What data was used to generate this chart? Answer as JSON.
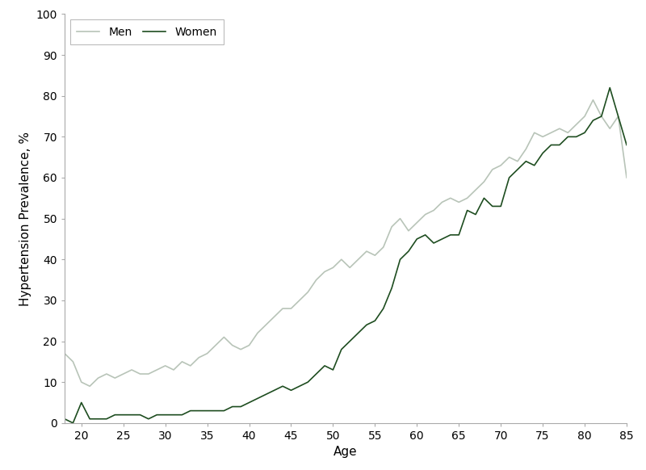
{
  "men_ages": [
    18,
    19,
    20,
    21,
    22,
    23,
    24,
    25,
    26,
    27,
    28,
    29,
    30,
    31,
    32,
    33,
    34,
    35,
    36,
    37,
    38,
    39,
    40,
    41,
    42,
    43,
    44,
    45,
    46,
    47,
    48,
    49,
    50,
    51,
    52,
    53,
    54,
    55,
    56,
    57,
    58,
    59,
    60,
    61,
    62,
    63,
    64,
    65,
    66,
    67,
    68,
    69,
    70,
    71,
    72,
    73,
    74,
    75,
    76,
    77,
    78,
    79,
    80,
    81,
    82,
    83,
    84,
    85
  ],
  "men_values": [
    17,
    15,
    10,
    9,
    11,
    12,
    11,
    12,
    13,
    12,
    12,
    13,
    14,
    13,
    15,
    14,
    16,
    17,
    19,
    21,
    19,
    18,
    19,
    22,
    24,
    26,
    28,
    28,
    30,
    32,
    35,
    37,
    38,
    40,
    38,
    40,
    42,
    41,
    43,
    48,
    50,
    47,
    49,
    51,
    52,
    54,
    55,
    54,
    55,
    57,
    59,
    62,
    63,
    65,
    64,
    67,
    71,
    70,
    71,
    72,
    71,
    73,
    75,
    79,
    75,
    72,
    75,
    60
  ],
  "women_ages": [
    18,
    19,
    20,
    21,
    22,
    23,
    24,
    25,
    26,
    27,
    28,
    29,
    30,
    31,
    32,
    33,
    34,
    35,
    36,
    37,
    38,
    39,
    40,
    41,
    42,
    43,
    44,
    45,
    46,
    47,
    48,
    49,
    50,
    51,
    52,
    53,
    54,
    55,
    56,
    57,
    58,
    59,
    60,
    61,
    62,
    63,
    64,
    65,
    66,
    67,
    68,
    69,
    70,
    71,
    72,
    73,
    74,
    75,
    76,
    77,
    78,
    79,
    80,
    81,
    82,
    83,
    84,
    85
  ],
  "women_values": [
    1,
    0,
    5,
    1,
    1,
    1,
    2,
    2,
    2,
    2,
    1,
    2,
    2,
    2,
    2,
    3,
    3,
    3,
    3,
    3,
    4,
    4,
    5,
    6,
    7,
    8,
    9,
    8,
    9,
    10,
    12,
    14,
    13,
    18,
    20,
    22,
    24,
    25,
    28,
    33,
    40,
    42,
    45,
    46,
    44,
    45,
    46,
    46,
    52,
    51,
    55,
    53,
    53,
    60,
    62,
    64,
    63,
    66,
    68,
    68,
    70,
    70,
    71,
    74,
    75,
    82,
    75,
    68
  ],
  "men_color": "#b8c4b8",
  "women_color": "#1e4d20",
  "xlabel": "Age",
  "ylabel": "Hypertension Prevalence, %",
  "ylim": [
    0,
    100
  ],
  "xlim": [
    18,
    85
  ],
  "yticks": [
    0,
    10,
    20,
    30,
    40,
    50,
    60,
    70,
    80,
    90,
    100
  ],
  "xticks": [
    20,
    25,
    30,
    35,
    40,
    45,
    50,
    55,
    60,
    65,
    70,
    75,
    80,
    85
  ],
  "legend_labels": [
    "Men",
    "Women"
  ],
  "line_width": 1.2
}
